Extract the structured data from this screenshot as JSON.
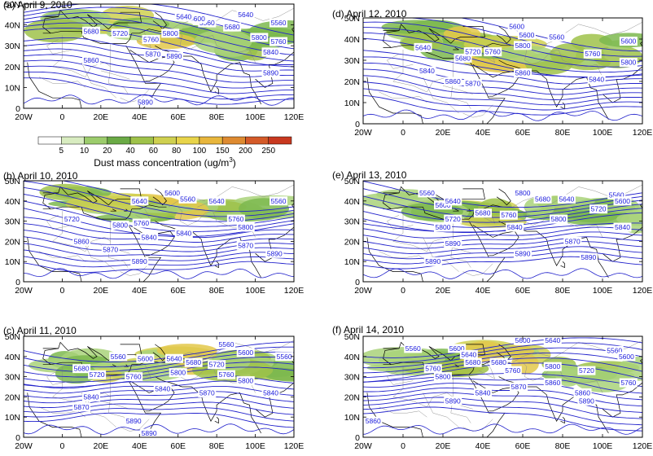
{
  "chart_data": {
    "type": "map",
    "xticks": [
      "20W",
      "0",
      "20E",
      "40E",
      "60E",
      "80E",
      "100E",
      "120E"
    ],
    "yticks": [
      "0",
      "10N",
      "20N",
      "30N",
      "40N",
      "50N"
    ],
    "lon_range": [
      -20,
      120
    ],
    "lat_range": [
      0,
      50
    ],
    "colorbar": {
      "title": "Dust mass concentration (ug/m",
      "title_sup": "3",
      "title_end": ")",
      "levels": [
        "5",
        "10",
        "20",
        "40",
        "60",
        "80",
        "100",
        "150",
        "200",
        "250"
      ],
      "colors": [
        "#ffffff",
        "#d8ecc0",
        "#9ccc6c",
        "#6aaa45",
        "#9fc24a",
        "#cfd050",
        "#e8d44a",
        "#e8b63c",
        "#de8a30",
        "#d45a28",
        "#c8381f"
      ]
    },
    "contour_color": "#2222cc",
    "panels": [
      {
        "title": "(a) April 9, 2010",
        "labels": [
          {
            "text": "5560",
            "lon": 75,
            "lat": 41
          },
          {
            "text": "5600",
            "lon": 70,
            "lat": 43
          },
          {
            "text": "5640",
            "lon": 63,
            "lat": 44
          },
          {
            "text": "5680",
            "lon": 15,
            "lat": 37
          },
          {
            "text": "5720",
            "lon": 30,
            "lat": 36
          },
          {
            "text": "5760",
            "lon": 46,
            "lat": 33
          },
          {
            "text": "5800",
            "lon": 56,
            "lat": 36
          },
          {
            "text": "5860",
            "lon": 15,
            "lat": 23
          },
          {
            "text": "5870",
            "lon": 47,
            "lat": 26
          },
          {
            "text": "5890",
            "lon": 58,
            "lat": 25
          },
          {
            "text": "5840",
            "lon": 108,
            "lat": 27
          },
          {
            "text": "5890",
            "lon": 108,
            "lat": 17
          },
          {
            "text": "5890",
            "lon": 43,
            "lat": 3
          },
          {
            "text": "5560",
            "lon": 112,
            "lat": 41
          },
          {
            "text": "5680",
            "lon": 88,
            "lat": 39
          },
          {
            "text": "5760",
            "lon": 112,
            "lat": 32
          },
          {
            "text": "5640",
            "lon": 95,
            "lat": 45
          },
          {
            "text": "5800",
            "lon": 102,
            "lat": 34
          }
        ]
      },
      {
        "title": "(d) April 12, 2010",
        "labels": [
          {
            "text": "5560",
            "lon": 77,
            "lat": 41
          },
          {
            "text": "5600",
            "lon": 62,
            "lat": 42
          },
          {
            "text": "5640",
            "lon": 10,
            "lat": 36
          },
          {
            "text": "5680",
            "lon": 30,
            "lat": 31
          },
          {
            "text": "5720",
            "lon": 35,
            "lat": 34
          },
          {
            "text": "5760",
            "lon": 45,
            "lat": 34
          },
          {
            "text": "5800",
            "lon": 60,
            "lat": 37
          },
          {
            "text": "5840",
            "lon": 12,
            "lat": 25
          },
          {
            "text": "5860",
            "lon": 25,
            "lat": 20
          },
          {
            "text": "5870",
            "lon": 35,
            "lat": 19
          },
          {
            "text": "5760",
            "lon": 95,
            "lat": 33
          },
          {
            "text": "5800",
            "lon": 113,
            "lat": 29
          },
          {
            "text": "5840",
            "lon": 97,
            "lat": 21
          },
          {
            "text": "5860",
            "lon": 60,
            "lat": 24
          },
          {
            "text": "5600",
            "lon": 113,
            "lat": 39
          },
          {
            "text": "5600",
            "lon": 57,
            "lat": 46
          }
        ]
      },
      {
        "title": "(b) April 10, 2010",
        "labels": [
          {
            "text": "5600",
            "lon": 57,
            "lat": 44
          },
          {
            "text": "5560",
            "lon": 65,
            "lat": 41
          },
          {
            "text": "5640",
            "lon": 80,
            "lat": 40
          },
          {
            "text": "5720",
            "lon": 5,
            "lat": 31
          },
          {
            "text": "5760",
            "lon": 41,
            "lat": 29
          },
          {
            "text": "5800",
            "lon": 30,
            "lat": 28
          },
          {
            "text": "5860",
            "lon": 10,
            "lat": 20
          },
          {
            "text": "5870",
            "lon": 25,
            "lat": 16
          },
          {
            "text": "5890",
            "lon": 40,
            "lat": 10
          },
          {
            "text": "5840",
            "lon": 63,
            "lat": 24
          },
          {
            "text": "5760",
            "lon": 90,
            "lat": 31
          },
          {
            "text": "5800",
            "lon": 95,
            "lat": 27
          },
          {
            "text": "5870",
            "lon": 95,
            "lat": 18
          },
          {
            "text": "5890",
            "lon": 110,
            "lat": 14
          },
          {
            "text": "5560",
            "lon": 112,
            "lat": 40
          },
          {
            "text": "5640",
            "lon": 40,
            "lat": 40
          },
          {
            "text": "5840",
            "lon": 45,
            "lat": 22
          }
        ]
      },
      {
        "title": "(e) April 13, 2010",
        "labels": [
          {
            "text": "5560",
            "lon": 12,
            "lat": 44
          },
          {
            "text": "5600",
            "lon": 20,
            "lat": 38
          },
          {
            "text": "5640",
            "lon": 25,
            "lat": 40
          },
          {
            "text": "5680",
            "lon": 40,
            "lat": 34
          },
          {
            "text": "5720",
            "lon": 25,
            "lat": 31
          },
          {
            "text": "5760",
            "lon": 53,
            "lat": 33
          },
          {
            "text": "5800",
            "lon": 20,
            "lat": 27
          },
          {
            "text": "5840",
            "lon": 56,
            "lat": 27
          },
          {
            "text": "5800",
            "lon": 78,
            "lat": 31
          },
          {
            "text": "5870",
            "lon": 85,
            "lat": 20
          },
          {
            "text": "5890",
            "lon": 25,
            "lat": 19
          },
          {
            "text": "5890",
            "lon": 60,
            "lat": 14
          },
          {
            "text": "5890",
            "lon": 93,
            "lat": 12
          },
          {
            "text": "5560",
            "lon": 107,
            "lat": 43
          },
          {
            "text": "5600",
            "lon": 110,
            "lat": 40
          },
          {
            "text": "5640",
            "lon": 82,
            "lat": 41
          },
          {
            "text": "5720",
            "lon": 98,
            "lat": 36
          },
          {
            "text": "5840",
            "lon": 110,
            "lat": 27
          },
          {
            "text": "5680",
            "lon": 70,
            "lat": 41
          },
          {
            "text": "5800",
            "lon": 60,
            "lat": 44
          },
          {
            "text": "5890",
            "lon": 15,
            "lat": 10
          }
        ]
      },
      {
        "title": "(c) April 11, 2010",
        "labels": [
          {
            "text": "5560",
            "lon": 29,
            "lat": 40
          },
          {
            "text": "5600",
            "lon": 43,
            "lat": 39
          },
          {
            "text": "5640",
            "lon": 58,
            "lat": 39
          },
          {
            "text": "5680",
            "lon": 10,
            "lat": 34
          },
          {
            "text": "5720",
            "lon": 18,
            "lat": 31
          },
          {
            "text": "5760",
            "lon": 37,
            "lat": 30
          },
          {
            "text": "5800",
            "lon": 60,
            "lat": 32
          },
          {
            "text": "5840",
            "lon": 15,
            "lat": 20
          },
          {
            "text": "5870",
            "lon": 10,
            "lat": 15
          },
          {
            "text": "5890",
            "lon": 37,
            "lat": 8
          },
          {
            "text": "5840",
            "lon": 52,
            "lat": 24
          },
          {
            "text": "5870",
            "lon": 75,
            "lat": 22
          },
          {
            "text": "5760",
            "lon": 85,
            "lat": 31
          },
          {
            "text": "5800",
            "lon": 95,
            "lat": 28
          },
          {
            "text": "5840",
            "lon": 108,
            "lat": 22
          },
          {
            "text": "5560",
            "lon": 85,
            "lat": 46
          },
          {
            "text": "5600",
            "lon": 95,
            "lat": 42
          },
          {
            "text": "5560",
            "lon": 115,
            "lat": 40
          },
          {
            "text": "5720",
            "lon": 80,
            "lat": 36
          },
          {
            "text": "5680",
            "lon": 68,
            "lat": 37
          },
          {
            "text": "5890",
            "lon": 45,
            "lat": 2
          }
        ]
      },
      {
        "title": "(f) April 14, 2010",
        "labels": [
          {
            "text": "5560",
            "lon": 5,
            "lat": 44
          },
          {
            "text": "5600",
            "lon": 27,
            "lat": 44
          },
          {
            "text": "5640",
            "lon": 33,
            "lat": 41
          },
          {
            "text": "5680",
            "lon": 35,
            "lat": 37
          },
          {
            "text": "5760",
            "lon": 15,
            "lat": 34
          },
          {
            "text": "5800",
            "lon": 20,
            "lat": 30
          },
          {
            "text": "5840",
            "lon": 40,
            "lat": 22
          },
          {
            "text": "5890",
            "lon": 25,
            "lat": 18
          },
          {
            "text": "5870",
            "lon": 58,
            "lat": 25
          },
          {
            "text": "5760",
            "lon": 55,
            "lat": 33
          },
          {
            "text": "5800",
            "lon": 75,
            "lat": 35
          },
          {
            "text": "5860",
            "lon": 75,
            "lat": 27
          },
          {
            "text": "5860",
            "lon": 90,
            "lat": 22
          },
          {
            "text": "5890",
            "lon": 92,
            "lat": 18
          },
          {
            "text": "5760",
            "lon": 113,
            "lat": 27
          },
          {
            "text": "5560",
            "lon": 106,
            "lat": 43
          },
          {
            "text": "5600",
            "lon": 112,
            "lat": 40
          },
          {
            "text": "5640",
            "lon": 75,
            "lat": 48
          },
          {
            "text": "5600",
            "lon": 60,
            "lat": 48
          },
          {
            "text": "5720",
            "lon": 92,
            "lat": 33
          },
          {
            "text": "5680",
            "lon": 48,
            "lat": 37
          },
          {
            "text": "5860",
            "lon": -15,
            "lat": 8
          }
        ]
      }
    ]
  }
}
